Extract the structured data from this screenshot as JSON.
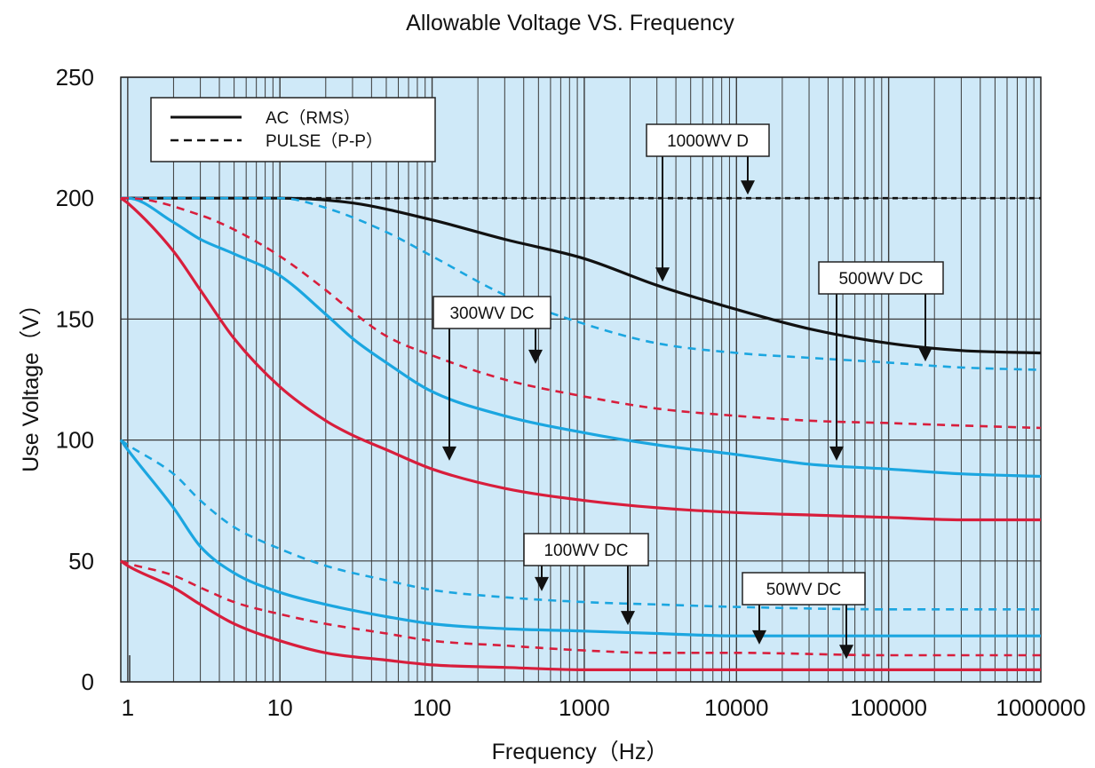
{
  "chart_data": {
    "type": "line",
    "title": "Allowable Voltage VS. Frequency",
    "xlabel": "Frequency（Hz）",
    "ylabel": "Use Voltage（V）",
    "xscale": "log",
    "xlim": [
      0.9,
      1000000
    ],
    "ylim": [
      0,
      250
    ],
    "xticks": [
      {
        "value": 1,
        "label": "1"
      },
      {
        "value": 10,
        "label": "10"
      },
      {
        "value": 100,
        "label": "100"
      },
      {
        "value": 1000,
        "label": "1000"
      },
      {
        "value": 10000,
        "label": "10000"
      },
      {
        "value": 100000,
        "label": "100000"
      },
      {
        "value": 1000000,
        "label": "1000000"
      }
    ],
    "yticks": [
      {
        "value": 0,
        "label": "0"
      },
      {
        "value": 50,
        "label": "50"
      },
      {
        "value": 100,
        "label": "100"
      },
      {
        "value": 150,
        "label": "150"
      },
      {
        "value": 200,
        "label": "200"
      },
      {
        "value": 250,
        "label": "250"
      }
    ],
    "grid": true,
    "background": "#cfe9f8",
    "legend": {
      "position": "top-left",
      "entries": [
        {
          "label": "AC（RMS）",
          "style": "solid"
        },
        {
          "label": "PULSE（P-P）",
          "style": "dashed"
        }
      ]
    },
    "colors": {
      "black": "#111111",
      "blue": "#1ba6e0",
      "red": "#d81e3c"
    },
    "series": [
      {
        "group": "1000WV D",
        "kind": "PULSE",
        "color": "black",
        "dash": true,
        "x": [
          0.9,
          1,
          10,
          100,
          1000,
          10000,
          100000,
          1000000
        ],
        "y": [
          200,
          200,
          200,
          200,
          200,
          200,
          200,
          200
        ]
      },
      {
        "group": "1000WV D",
        "kind": "AC",
        "color": "black",
        "dash": false,
        "x": [
          0.9,
          1,
          3,
          10,
          30,
          100,
          300,
          1000,
          3000,
          10000,
          30000,
          100000,
          300000,
          1000000
        ],
        "y": [
          200,
          200,
          200,
          200,
          198,
          191,
          183,
          175,
          164,
          154,
          146,
          140,
          137,
          136
        ]
      },
      {
        "group": "500WV DC",
        "kind": "PULSE",
        "color": "blue",
        "dash": true,
        "x": [
          0.9,
          1,
          3,
          10,
          20,
          50,
          100,
          300,
          1000,
          3000,
          10000,
          30000,
          100000,
          300000,
          1000000
        ],
        "y": [
          200,
          200,
          200,
          200,
          196,
          186,
          176,
          160,
          148,
          140,
          136,
          134,
          132,
          130,
          129
        ]
      },
      {
        "group": "500WV DC",
        "kind": "AC",
        "color": "blue",
        "dash": false,
        "x": [
          0.9,
          1,
          2,
          3,
          5,
          10,
          20,
          30,
          50,
          100,
          300,
          1000,
          3000,
          10000,
          30000,
          100000,
          300000,
          1000000
        ],
        "y": [
          200,
          200,
          190,
          183,
          177,
          168,
          152,
          142,
          132,
          120,
          110,
          103,
          98,
          94,
          90,
          88,
          86,
          85
        ]
      },
      {
        "group": "300WV DC",
        "kind": "PULSE",
        "color": "red",
        "dash": true,
        "x": [
          0.9,
          1,
          3,
          5,
          10,
          20,
          30,
          50,
          100,
          300,
          1000,
          3000,
          10000,
          30000,
          100000,
          300000,
          1000000
        ],
        "y": [
          200,
          200,
          193,
          187,
          176,
          162,
          153,
          143,
          135,
          125,
          118,
          113,
          110,
          108,
          107,
          106,
          105
        ]
      },
      {
        "group": "300WV DC",
        "kind": "AC",
        "color": "red",
        "dash": false,
        "x": [
          0.9,
          1,
          2,
          3,
          5,
          10,
          20,
          30,
          50,
          100,
          300,
          1000,
          3000,
          10000,
          30000,
          100000,
          300000,
          1000000
        ],
        "y": [
          200,
          198,
          178,
          162,
          142,
          122,
          108,
          102,
          96,
          88,
          80,
          75,
          72,
          70,
          69,
          68,
          67,
          67
        ]
      },
      {
        "group": "100WV DC",
        "kind": "PULSE",
        "color": "blue",
        "dash": true,
        "x": [
          0.9,
          1,
          2,
          3,
          5,
          10,
          20,
          50,
          100,
          300,
          1000,
          3000,
          10000,
          100000,
          1000000
        ],
        "y": [
          100,
          98,
          86,
          75,
          64,
          55,
          48,
          42,
          38,
          35,
          33,
          32,
          31,
          30,
          30
        ]
      },
      {
        "group": "100WV DC",
        "kind": "AC",
        "color": "blue",
        "dash": false,
        "x": [
          0.9,
          1,
          2,
          3,
          5,
          10,
          20,
          50,
          100,
          300,
          1000,
          3000,
          10000,
          100000,
          1000000
        ],
        "y": [
          100,
          96,
          72,
          56,
          45,
          37,
          32,
          27,
          24,
          22,
          21,
          20,
          19,
          19,
          19
        ]
      },
      {
        "group": "50WV DC",
        "kind": "PULSE",
        "color": "red",
        "dash": true,
        "x": [
          0.9,
          1,
          2,
          3,
          5,
          10,
          20,
          50,
          100,
          300,
          1000,
          3000,
          10000,
          100000,
          1000000
        ],
        "y": [
          50,
          49,
          44,
          39,
          33,
          28,
          24,
          20,
          17,
          15,
          13,
          12,
          12,
          11,
          11
        ]
      },
      {
        "group": "50WV DC",
        "kind": "AC",
        "color": "red",
        "dash": false,
        "x": [
          0.9,
          1,
          2,
          3,
          5,
          10,
          20,
          50,
          100,
          300,
          1000,
          3000,
          10000,
          100000,
          1000000
        ],
        "y": [
          50,
          48,
          39,
          32,
          24,
          17,
          12,
          9,
          7,
          6,
          5,
          5,
          5,
          5,
          5
        ]
      }
    ],
    "annotations": [
      {
        "label": "1000WV D",
        "arrows": [
          {
            "x": 3300,
            "y": 164
          },
          {
            "x": 12600,
            "y": 200
          }
        ]
      },
      {
        "label": "500WV DC",
        "arrows": [
          {
            "x": 47000,
            "y": 90
          },
          {
            "x": 190000,
            "y": 131
          }
        ]
      },
      {
        "label": "300WV DC",
        "arrows": [
          {
            "x": 140,
            "y": 90
          },
          {
            "x": 550,
            "y": 130
          }
        ]
      },
      {
        "label": "100WV DC",
        "arrows": [
          {
            "x": 590,
            "y": 36
          },
          {
            "x": 2050,
            "y": 22
          }
        ]
      },
      {
        "label": "50WV DC",
        "arrows": [
          {
            "x": 16000,
            "y": 14
          },
          {
            "x": 58000,
            "y": 8
          }
        ]
      }
    ]
  }
}
